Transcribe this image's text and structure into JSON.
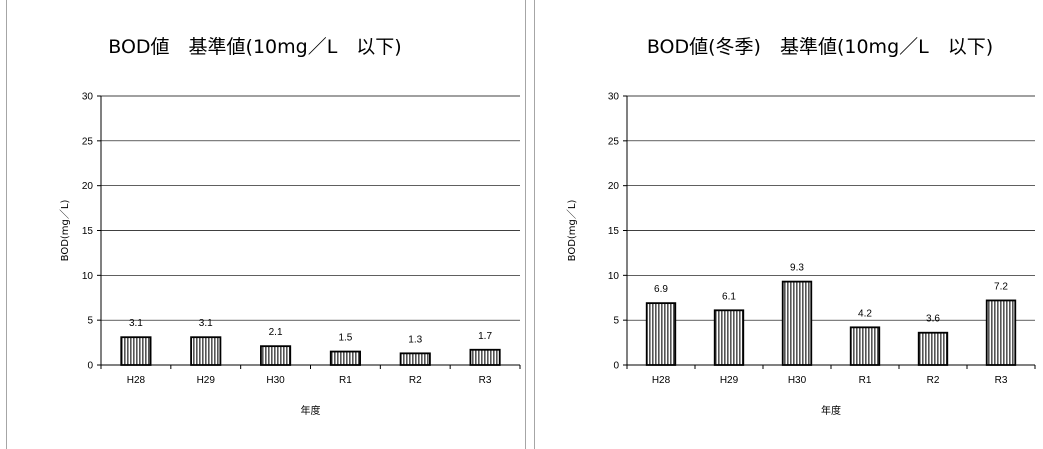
{
  "chart_data": [
    {
      "type": "bar",
      "title": "BOD値　基準値(10mg／L　以下)",
      "xlabel": "年度",
      "ylabel": "BOD(mg／L)",
      "categories": [
        "H28",
        "H29",
        "H30",
        "R1",
        "R2",
        "R3"
      ],
      "values": [
        3.1,
        3.1,
        2.1,
        1.5,
        1.3,
        1.7
      ],
      "ylim": [
        0,
        30
      ],
      "yticks": [
        0,
        5,
        10,
        15,
        20,
        25,
        30
      ],
      "grid": true,
      "legend": "none",
      "bar_fill": "vertical-hatch",
      "colors": {
        "bar_stroke": "#000000",
        "hatch": "#555555",
        "grid": "#000000"
      }
    },
    {
      "type": "bar",
      "title": "BOD値(冬季)　基準値(10mg／L　以下)",
      "xlabel": "年度",
      "ylabel": "BOD(mg／L)",
      "categories": [
        "H28",
        "H29",
        "H30",
        "R1",
        "R2",
        "R3"
      ],
      "values": [
        6.9,
        6.1,
        9.3,
        4.2,
        3.6,
        7.2
      ],
      "ylim": [
        0,
        30
      ],
      "yticks": [
        0,
        5,
        10,
        15,
        20,
        25,
        30
      ],
      "grid": true,
      "legend": "none",
      "bar_fill": "vertical-hatch",
      "colors": {
        "bar_stroke": "#000000",
        "hatch": "#555555",
        "grid": "#000000"
      }
    }
  ]
}
